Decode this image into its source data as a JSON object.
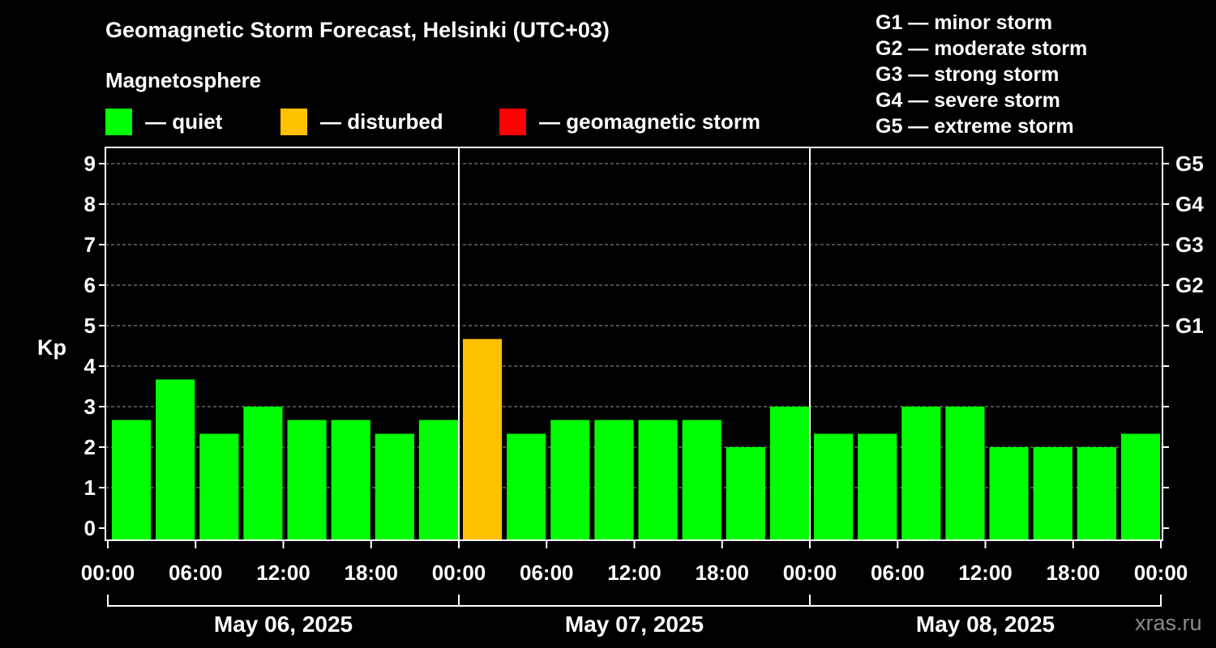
{
  "title": "Geomagnetic Storm Forecast, Helsinki (UTC+03)",
  "legend": {
    "heading": "Magnetosphere",
    "items": [
      {
        "label": "— quiet",
        "color": "#00ff00"
      },
      {
        "label": "— disturbed",
        "color": "#ffc000"
      },
      {
        "label": "— geomagnetic storm",
        "color": "#ff0000"
      }
    ]
  },
  "storm_levels": [
    "G1 — minor storm",
    "G2 — moderate storm",
    "G3 — strong storm",
    "G4 — severe storm",
    "G5 — extreme storm"
  ],
  "watermark": "xras.ru",
  "chart_data": {
    "type": "bar",
    "ylabel": "Kp",
    "ylim": [
      0,
      9
    ],
    "yticks": [
      "0",
      "1",
      "2",
      "3",
      "4",
      "5",
      "6",
      "7",
      "8",
      "9"
    ],
    "right_ticks": [
      {
        "kp": 5,
        "label": "G1"
      },
      {
        "kp": 6,
        "label": "G2"
      },
      {
        "kp": 7,
        "label": "G3"
      },
      {
        "kp": 8,
        "label": "G4"
      },
      {
        "kp": 9,
        "label": "G5"
      }
    ],
    "grid": true,
    "xtick_labels": [
      "00:00",
      "06:00",
      "12:00",
      "18:00",
      "00:00",
      "06:00",
      "12:00",
      "18:00",
      "00:00",
      "06:00",
      "12:00",
      "18:00",
      "00:00"
    ],
    "days": [
      "May 06, 2025",
      "May 07, 2025",
      "May 08, 2025"
    ],
    "interval_hours": 3,
    "values": [
      2.67,
      3.67,
      2.33,
      3.0,
      2.67,
      2.67,
      2.33,
      2.67,
      4.67,
      2.33,
      2.67,
      2.67,
      2.67,
      2.67,
      2.0,
      3.0,
      2.33,
      2.33,
      3.0,
      3.0,
      2.0,
      2.0,
      2.0,
      2.33
    ],
    "colors": [
      "#00ff00",
      "#00ff00",
      "#00ff00",
      "#00ff00",
      "#00ff00",
      "#00ff00",
      "#00ff00",
      "#00ff00",
      "#ffc000",
      "#00ff00",
      "#00ff00",
      "#00ff00",
      "#00ff00",
      "#00ff00",
      "#00ff00",
      "#00ff00",
      "#00ff00",
      "#00ff00",
      "#00ff00",
      "#00ff00",
      "#00ff00",
      "#00ff00",
      "#00ff00",
      "#00ff00"
    ]
  }
}
